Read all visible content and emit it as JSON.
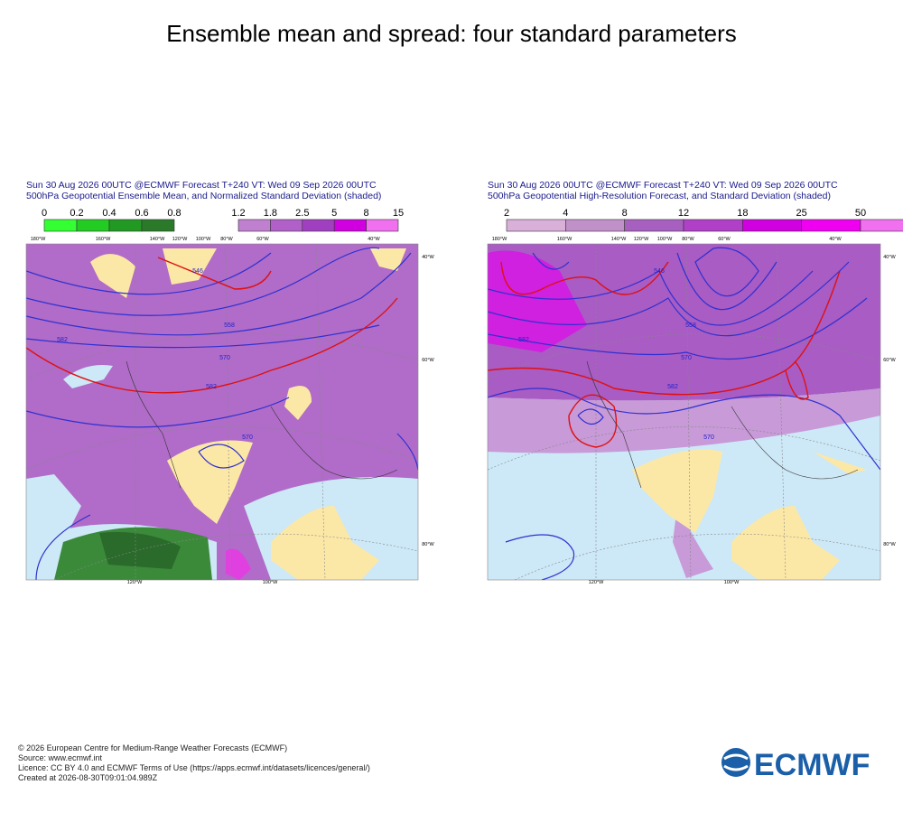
{
  "title": "Ensemble mean and spread: four standard parameters",
  "panels": [
    {
      "header": [
        "Sun 30 Aug 2026 00UTC @ECMWF Forecast T+240 VT: Wed 09 Sep 2026 00UTC",
        "500hPa Geopotential Ensemble Mean, and Normalized Standard Deviation (shaded)"
      ],
      "legends": [
        [
          0,
          0.2,
          0.4,
          0.6,
          0.8
        ],
        [
          1.2,
          1.8,
          2.5,
          5,
          8,
          15
        ]
      ],
      "map_labels": [
        "180°W",
        "160°W",
        "140°W",
        "120°W",
        "100°W",
        "80°W",
        "60°W",
        "40°W",
        "120°W",
        "100°W",
        "40°W",
        "60°W",
        "80°W",
        "558",
        "570",
        "582",
        "546",
        "570",
        "582"
      ]
    },
    {
      "header": [
        "Sun 30 Aug 2026 00UTC @ECMWF Forecast T+240 VT: Wed 09 Sep 2026 00UTC",
        "500hPa Geopotential High-Resolution Forecast, and Standard Deviation (shaded)"
      ],
      "legends": [
        [
          2,
          4,
          8,
          12,
          18,
          25,
          50
        ]
      ],
      "map_labels": [
        "180°W",
        "160°W",
        "140°W",
        "120°W",
        "100°W",
        "80°W",
        "60°W",
        "40°W",
        "120°W",
        "100°W",
        "40°W",
        "60°W",
        "80°W",
        "558",
        "570",
        "582",
        "546",
        "570",
        "582"
      ]
    }
  ],
  "footer": [
    "© 2026 European Centre for Medium-Range Weather Forecasts (ECMWF)",
    "Source: www.ecmwf.int",
    "Licence: CC BY 4.0 and ECMWF Terms of Use (https://apps.ecmwf.int/datasets/licences/general/)",
    "Created at 2026-08-30T09:01:04.989Z"
  ],
  "logo": "ECMWF"
}
